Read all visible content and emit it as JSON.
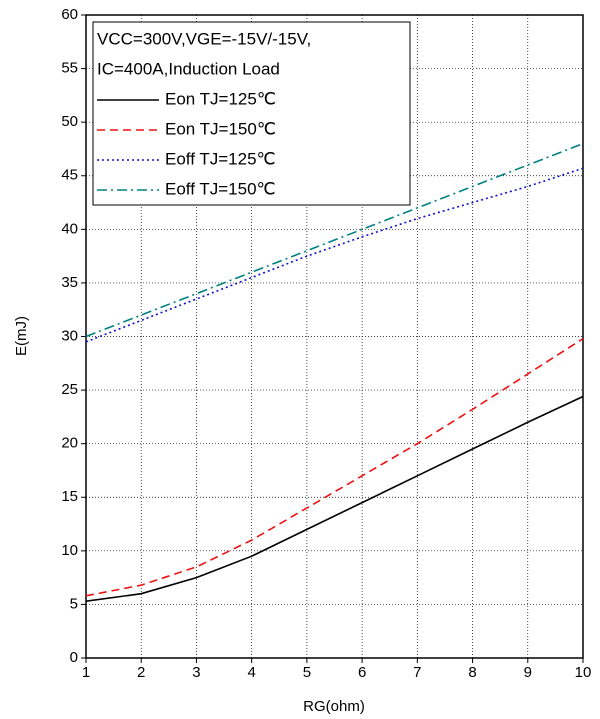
{
  "chart_data": {
    "type": "line",
    "annotation": [
      "VCC=300V,VGE=-15V/-15V,",
      "IC=400A,Induction Load"
    ],
    "x_label": "RG(ohm)",
    "y_label": "E(mJ)",
    "x": [
      1,
      2,
      3,
      4,
      5,
      6,
      7,
      8,
      9,
      10
    ],
    "series": [
      {
        "name": "Eon TJ=125℃",
        "color": "#000000",
        "dash": "solid",
        "values": [
          5.3,
          6.0,
          7.5,
          9.5,
          12.0,
          14.5,
          17.0,
          19.5,
          22.0,
          24.4
        ]
      },
      {
        "name": "Eon TJ=150℃",
        "color": "#ee1111",
        "dash": "dashed",
        "values": [
          5.8,
          6.8,
          8.5,
          11.0,
          14.0,
          17.0,
          20.0,
          23.2,
          26.5,
          29.8
        ]
      },
      {
        "name": "Eoff TJ=125℃",
        "color": "#1111cc",
        "dash": "dotted",
        "values": [
          29.5,
          31.5,
          33.5,
          35.5,
          37.5,
          39.3,
          41.0,
          42.5,
          44.0,
          45.7
        ]
      },
      {
        "name": "Eoff TJ=150℃",
        "color": "#008080",
        "dash": "dashdot",
        "values": [
          30.0,
          32.0,
          34.0,
          36.0,
          38.0,
          40.0,
          42.0,
          44.0,
          46.0,
          48.0
        ]
      }
    ],
    "xlim": [
      1,
      10
    ],
    "xticks": [
      1,
      2,
      3,
      4,
      5,
      6,
      7,
      8,
      9,
      10
    ],
    "ylim": [
      0,
      60
    ],
    "yticks": [
      0,
      5,
      10,
      15,
      20,
      25,
      30,
      35,
      40,
      45,
      50,
      55,
      60
    ],
    "grid": true,
    "legend": "upper left"
  }
}
